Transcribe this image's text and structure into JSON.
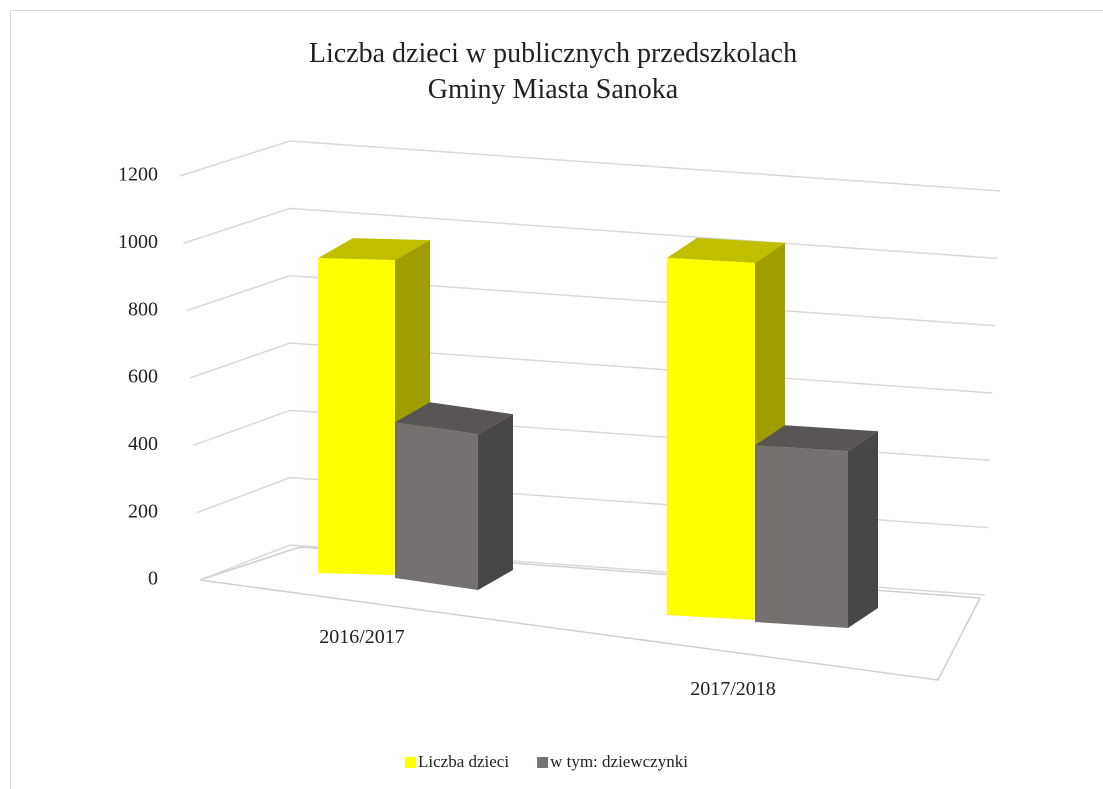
{
  "chart_data": {
    "type": "bar3d",
    "title": [
      "Liczba dzieci w publicznych przedszkolach",
      "Gminy Miasta Sanoka"
    ],
    "categories": [
      "2016/2017",
      "2017/2018"
    ],
    "series": [
      {
        "name": "Liczba dzieci",
        "color": "#ffff00",
        "values": [
          940,
          960
        ]
      },
      {
        "name": "w tym: dziewczynki",
        "color": "#767171",
        "values": [
          465,
          475
        ]
      }
    ],
    "ylim": [
      0,
      1200
    ],
    "yticks": [
      0,
      200,
      400,
      600,
      800,
      1000,
      1200
    ],
    "grid": true,
    "legend": "bottom"
  }
}
